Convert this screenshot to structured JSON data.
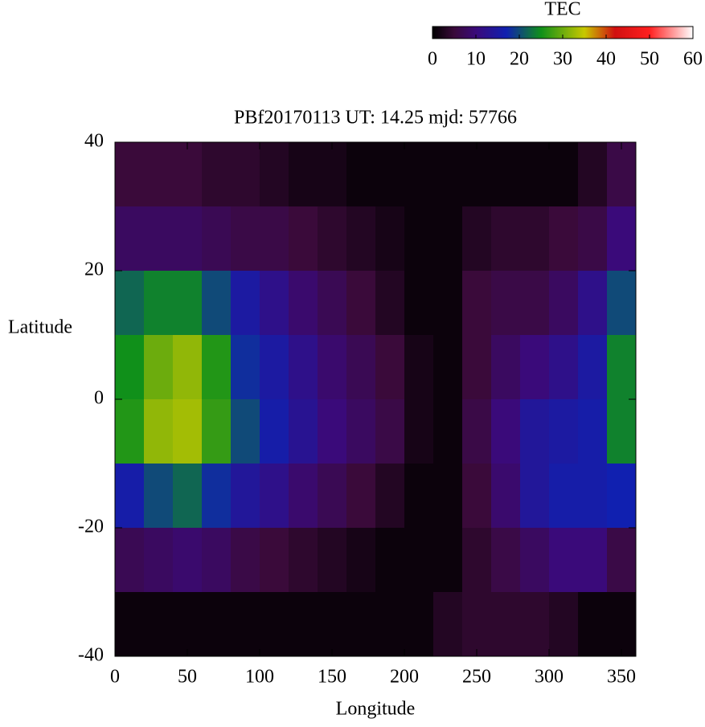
{
  "chart_data": {
    "type": "heatmap",
    "title": "PBf20170113  UT: 14.25  mjd: 57766",
    "x_label": "Longitude",
    "y_label": "Latitude",
    "colorbar_label": "TEC",
    "x": [
      10,
      30,
      50,
      70,
      90,
      110,
      130,
      150,
      170,
      190,
      210,
      230,
      250,
      270,
      290,
      310,
      330,
      350
    ],
    "y": [
      35,
      25,
      15,
      5,
      -5,
      -15,
      -25,
      -35
    ],
    "z": [
      [
        5,
        5,
        5,
        4,
        4,
        3,
        2,
        2,
        1,
        1,
        1,
        1,
        1,
        1,
        1,
        1,
        3,
        6
      ],
      [
        8,
        8,
        8,
        7,
        6,
        6,
        5,
        4,
        3,
        2,
        1,
        1,
        3,
        4,
        4,
        5,
        6,
        10
      ],
      [
        22,
        24,
        24,
        20,
        15,
        12,
        9,
        7,
        5,
        3,
        1,
        1,
        5,
        6,
        6,
        8,
        12,
        20
      ],
      [
        25,
        30,
        32,
        26,
        18,
        15,
        12,
        9,
        7,
        5,
        2,
        1,
        5,
        8,
        10,
        12,
        15,
        24
      ],
      [
        26,
        32,
        33,
        27,
        20,
        16,
        13,
        10,
        8,
        6,
        2,
        1,
        6,
        10,
        14,
        15,
        16,
        24
      ],
      [
        16,
        20,
        22,
        18,
        14,
        12,
        9,
        7,
        5,
        3,
        1,
        1,
        5,
        9,
        14,
        16,
        16,
        17
      ],
      [
        7,
        8,
        9,
        8,
        6,
        5,
        4,
        3,
        2,
        1,
        1,
        1,
        4,
        6,
        8,
        10,
        10,
        6
      ],
      [
        1,
        1,
        1,
        1,
        1,
        1,
        1,
        1,
        1,
        1,
        1,
        3,
        4,
        4,
        4,
        3,
        1,
        1
      ]
    ],
    "xlim": [
      0,
      360
    ],
    "ylim": [
      -40,
      40
    ],
    "xticks": [
      0,
      50,
      100,
      150,
      200,
      250,
      300,
      350
    ],
    "yticks": [
      -40,
      -20,
      0,
      20,
      40
    ],
    "cblim": [
      0,
      60
    ],
    "cbticks": [
      0,
      10,
      20,
      30,
      40,
      50,
      60
    ],
    "colormap": [
      {
        "value": 0,
        "color": "#000000"
      },
      {
        "value": 5,
        "color": "#3a0a3a"
      },
      {
        "value": 10,
        "color": "#3a0a7a"
      },
      {
        "value": 17,
        "color": "#1020b0"
      },
      {
        "value": 25,
        "color": "#10901a"
      },
      {
        "value": 35,
        "color": "#c8c800"
      },
      {
        "value": 42,
        "color": "#d01010"
      },
      {
        "value": 50,
        "color": "#ff2020"
      },
      {
        "value": 60,
        "color": "#ffffff"
      }
    ]
  }
}
